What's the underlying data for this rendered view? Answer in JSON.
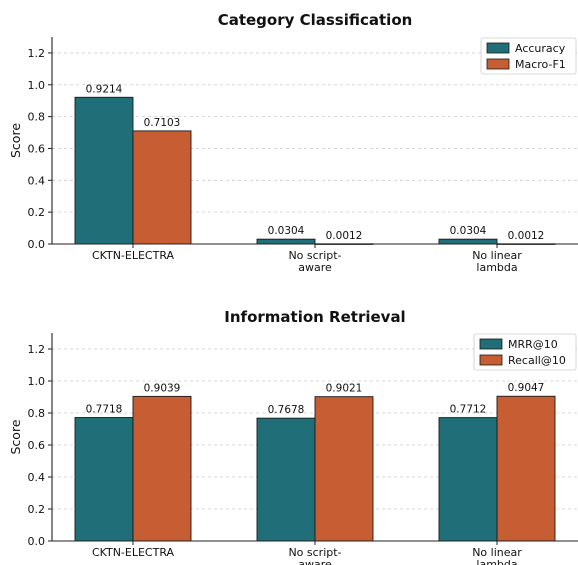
{
  "colors": {
    "series_a": "#1f6e78",
    "series_b": "#c65d33",
    "axis": "#222222",
    "grid": "#cccccc"
  },
  "chart_data": [
    {
      "type": "bar",
      "title": "Category Classification",
      "ylabel": "Score",
      "xlabel": "",
      "ylim": [
        0,
        1.3
      ],
      "yticks": [
        "0.0",
        "0.2",
        "0.4",
        "0.6",
        "0.8",
        "1.0",
        "1.2"
      ],
      "grid": "horizontal dashed",
      "legend_position": "top-right",
      "categories": [
        [
          "CKTN-ELECTRA"
        ],
        [
          "No script-",
          "aware"
        ],
        [
          "No linear",
          "lambda"
        ]
      ],
      "series": [
        {
          "name": "Accuracy",
          "values": [
            0.9214,
            0.0304,
            0.0304
          ],
          "labels": [
            "0.9214",
            "0.0304",
            "0.0304"
          ]
        },
        {
          "name": "Macro-F1",
          "values": [
            0.7103,
            0.0012,
            0.0012
          ],
          "labels": [
            "0.7103",
            "0.0012",
            "0.0012"
          ]
        }
      ]
    },
    {
      "type": "bar",
      "title": "Information Retrieval",
      "ylabel": "Score",
      "xlabel": "",
      "ylim": [
        0,
        1.3
      ],
      "yticks": [
        "0.0",
        "0.2",
        "0.4",
        "0.6",
        "0.8",
        "1.0",
        "1.2"
      ],
      "grid": "horizontal dashed",
      "legend_position": "top-right",
      "categories": [
        [
          "CKTN-ELECTRA"
        ],
        [
          "No script-",
          "aware"
        ],
        [
          "No linear",
          "lambda"
        ]
      ],
      "series": [
        {
          "name": "MRR@10",
          "values": [
            0.7718,
            0.7678,
            0.7712
          ],
          "labels": [
            "0.7718",
            "0.7678",
            "0.7712"
          ]
        },
        {
          "name": "Recall@10",
          "values": [
            0.9039,
            0.9021,
            0.9047
          ],
          "labels": [
            "0.9039",
            "0.9021",
            "0.9047"
          ]
        }
      ]
    }
  ]
}
